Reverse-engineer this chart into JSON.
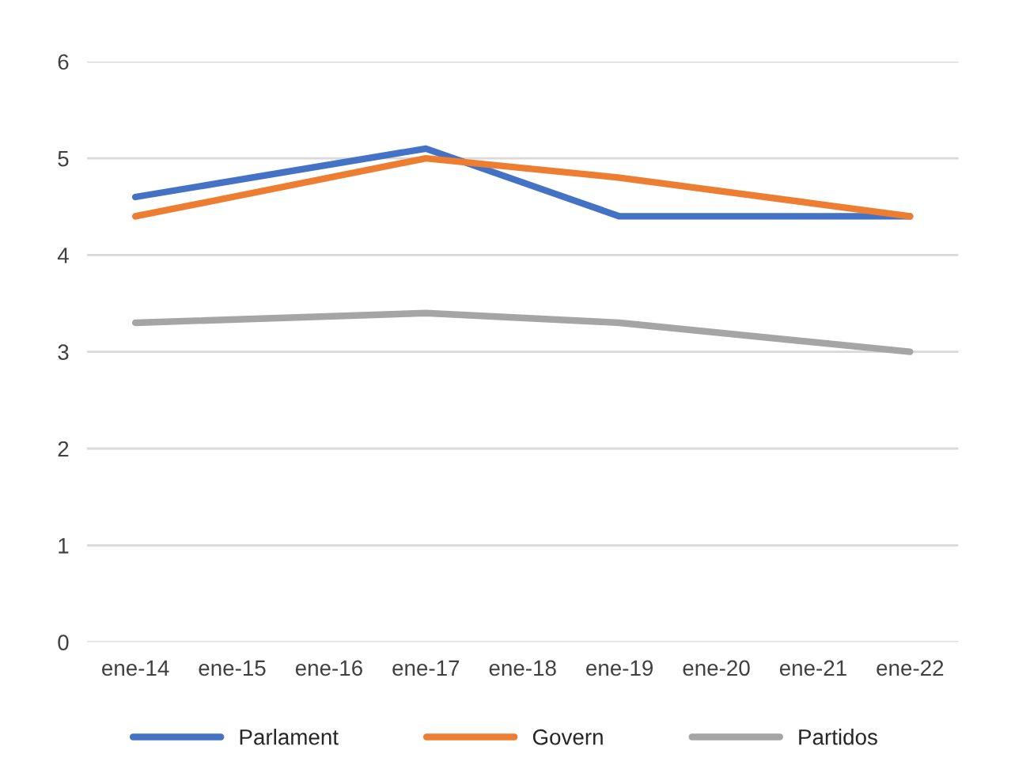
{
  "chart_data": {
    "type": "line",
    "categories": [
      "ene-14",
      "ene-15",
      "ene-16",
      "ene-17",
      "ene-18",
      "ene-19",
      "ene-20",
      "ene-21",
      "ene-22"
    ],
    "series": [
      {
        "name": "Parlament",
        "color": "#4472c4",
        "values": [
          4.6,
          null,
          null,
          5.1,
          null,
          4.4,
          null,
          null,
          4.4
        ]
      },
      {
        "name": "Govern",
        "color": "#ed7d31",
        "values": [
          4.4,
          null,
          null,
          5.0,
          null,
          4.8,
          null,
          null,
          4.4
        ]
      },
      {
        "name": "Partidos",
        "color": "#a5a5a5",
        "values": [
          3.3,
          null,
          null,
          3.4,
          null,
          3.3,
          null,
          null,
          3.0
        ]
      }
    ],
    "ylim": [
      0,
      6
    ],
    "yticks": [
      0,
      1,
      2,
      3,
      4,
      5,
      6
    ],
    "grid": "y",
    "legend": "bottom",
    "marker": "none",
    "line_style": "solid"
  }
}
